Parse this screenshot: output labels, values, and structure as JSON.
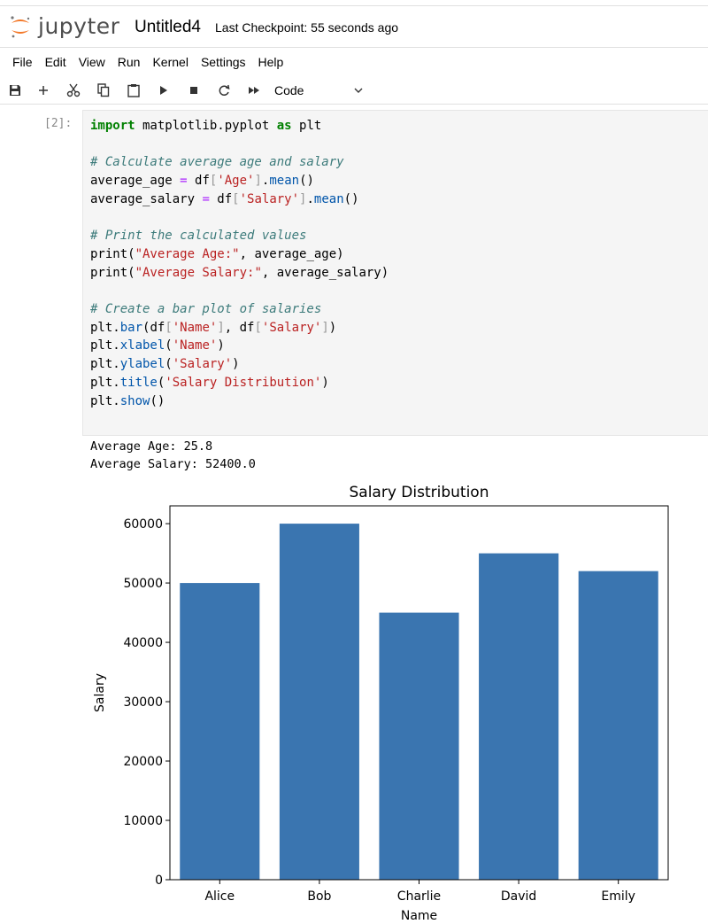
{
  "header": {
    "logo_text": "jupyter",
    "notebook_title": "Untitled4",
    "checkpoint": "Last Checkpoint: 55 seconds ago"
  },
  "menu": [
    "File",
    "Edit",
    "View",
    "Run",
    "Kernel",
    "Settings",
    "Help"
  ],
  "toolbar": {
    "icons": [
      "save-icon",
      "add-cell-icon",
      "cut-icon",
      "copy-icon",
      "paste-icon",
      "run-icon",
      "stop-icon",
      "restart-icon",
      "fast-forward-icon"
    ],
    "cell_type": "Code"
  },
  "cell": {
    "prompt": "[2]:",
    "output_lines": [
      "Average Age: 25.8",
      "Average Salary: 52400.0"
    ]
  },
  "chart_data": {
    "type": "bar",
    "title": "Salary Distribution",
    "xlabel": "Name",
    "ylabel": "Salary",
    "categories": [
      "Alice",
      "Bob",
      "Charlie",
      "David",
      "Emily"
    ],
    "values": [
      50000,
      60000,
      45000,
      55000,
      52000
    ],
    "ylim": [
      0,
      63000
    ],
    "yticks": [
      0,
      10000,
      20000,
      30000,
      40000,
      50000,
      60000
    ],
    "bar_color": "#3a75b0",
    "grid": false
  },
  "colors": {
    "keyword": "#008000",
    "comment": "#3d7b7b",
    "string": "#ba2121",
    "operator": "#aa22ff",
    "builtin_attr": "#0055aa",
    "logo_orange": "#f37726"
  }
}
